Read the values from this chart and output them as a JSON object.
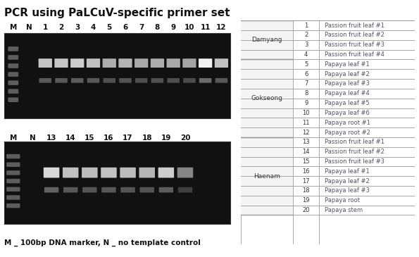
{
  "title": "PCR using PaLCuV-specific primer set",
  "title_fontsize": 11,
  "title_bold": true,
  "gel_image1_label_x": [
    "M",
    "N",
    "1",
    "2",
    "3",
    "4",
    "5",
    "6",
    "7",
    "8",
    "9",
    "10",
    "11",
    "12"
  ],
  "gel_image2_label_x": [
    "M",
    "N",
    "13",
    "14",
    "15",
    "16",
    "17",
    "18",
    "19",
    "20"
  ],
  "footnote": "M _ 100bp DNA marker, N _ no template control",
  "table_regions": [
    "Damyang",
    "Gokseong",
    "Haenam"
  ],
  "table_region_spans": [
    4,
    8,
    8
  ],
  "table_data": [
    [
      1,
      "Passion fruit leaf #1"
    ],
    [
      2,
      "Passion fruit leaf #2"
    ],
    [
      3,
      "Passion fruit leaf #3"
    ],
    [
      4,
      "Passion fruit leaf #4"
    ],
    [
      5,
      "Papaya leaf #1"
    ],
    [
      6,
      "Papaya leaf #2"
    ],
    [
      7,
      "Papaya leaf #3"
    ],
    [
      8,
      "Papaya leaf #4"
    ],
    [
      9,
      "Papaya leaf #5"
    ],
    [
      10,
      "Papaya leaf #6"
    ],
    [
      11,
      "Papaya root #1"
    ],
    [
      12,
      "Papaya root #2"
    ],
    [
      13,
      "Passion fruit leaf #1"
    ],
    [
      14,
      "Passion fruit leaf #2"
    ],
    [
      15,
      "Passion fruit leaf #3"
    ],
    [
      16,
      "Papaya leaf #1"
    ],
    [
      17,
      "Papaya leaf #2"
    ],
    [
      18,
      "Papaya leaf #3"
    ],
    [
      19,
      "Papaya root"
    ],
    [
      20,
      "Papaya stem"
    ]
  ],
  "bg_color": "#ffffff",
  "gel_bg": "#111111",
  "gel_border": "#333333",
  "table_border": "#999999",
  "table_text_color": "#555566",
  "table_num_color": "#333333",
  "region_text_color": "#333333"
}
